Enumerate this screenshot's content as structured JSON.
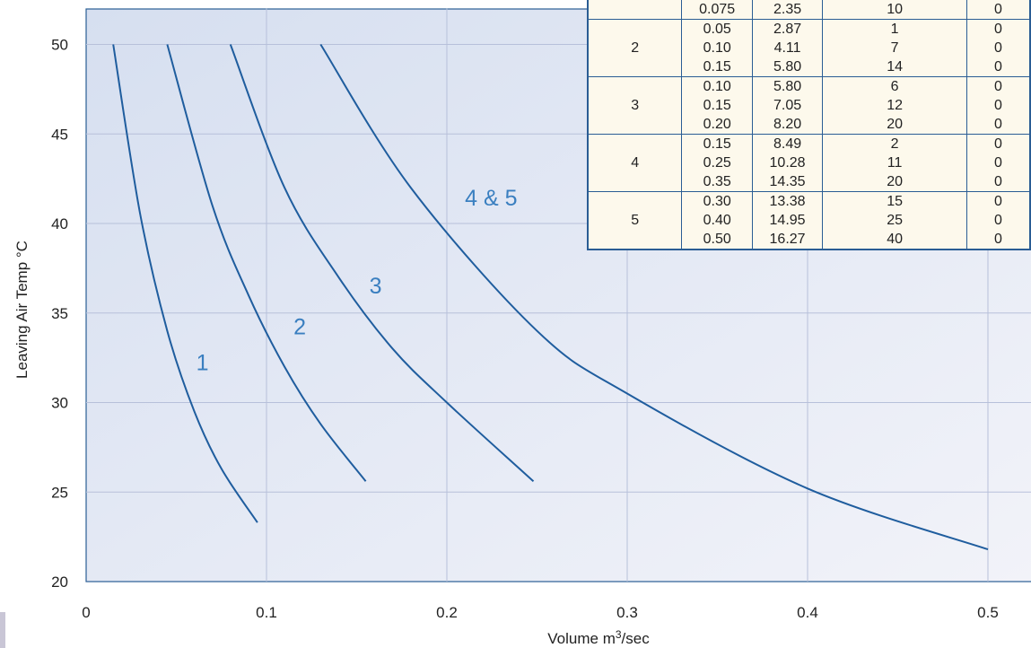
{
  "colors": {
    "curve": "#1f5d9e",
    "label": "#3a7fc0",
    "grid": "#b7c0da",
    "axis": "#2a5d94"
  },
  "chart_data": {
    "type": "line",
    "xlabel": "Volume m³/sec",
    "ylabel": "Leaving Air Temp °C",
    "xlim": [
      0,
      0.52
    ],
    "ylim": [
      20,
      52
    ],
    "x_ticks": [
      "0",
      "0.1",
      "0.2",
      "0.3",
      "0.4",
      "0.5"
    ],
    "y_ticks": [
      "20",
      "25",
      "30",
      "35",
      "40",
      "45",
      "50"
    ],
    "grid": true,
    "series": [
      {
        "name": "1",
        "x": [
          0.015,
          0.03,
          0.045,
          0.06,
          0.075,
          0.095
        ],
        "y": [
          50,
          40.5,
          34,
          29.5,
          26.3,
          23.3
        ]
      },
      {
        "name": "2",
        "x": [
          0.045,
          0.07,
          0.09,
          0.11,
          0.13,
          0.155
        ],
        "y": [
          50,
          41,
          36,
          32,
          28.8,
          25.6
        ]
      },
      {
        "name": "3",
        "x": [
          0.08,
          0.11,
          0.14,
          0.17,
          0.2,
          0.248
        ],
        "y": [
          50,
          42,
          37,
          33,
          30,
          25.6
        ]
      },
      {
        "name": "4 & 5",
        "x": [
          0.13,
          0.18,
          0.25,
          0.3,
          0.4,
          0.5
        ],
        "y": [
          50,
          42,
          34,
          30.5,
          25.2,
          21.8
        ]
      }
    ],
    "label_positions": [
      {
        "text": "1",
        "x": 0.061,
        "y": 31.8
      },
      {
        "text": "2",
        "x": 0.115,
        "y": 33.8
      },
      {
        "text": "3",
        "x": 0.157,
        "y": 36.1
      },
      {
        "text": "4 & 5",
        "x": 0.21,
        "y": 41.0
      }
    ]
  },
  "table": {
    "rows": [
      {
        "group": "",
        "volume": "0.075",
        "value": "2.35",
        "count": "10",
        "rest": "0"
      },
      {
        "group": "2",
        "volume": "0.05",
        "value": "2.87",
        "count": "1",
        "rest": "0"
      },
      {
        "group": "",
        "volume": "0.10",
        "value": "4.11",
        "count": "7",
        "rest": "0"
      },
      {
        "group": "",
        "volume": "0.15",
        "value": "5.80",
        "count": "14",
        "rest": "0"
      },
      {
        "group": "3",
        "volume": "0.10",
        "value": "5.80",
        "count": "6",
        "rest": "0"
      },
      {
        "group": "",
        "volume": "0.15",
        "value": "7.05",
        "count": "12",
        "rest": "0"
      },
      {
        "group": "",
        "volume": "0.20",
        "value": "8.20",
        "count": "20",
        "rest": "0"
      },
      {
        "group": "4",
        "volume": "0.15",
        "value": "8.49",
        "count": "2",
        "rest": "0"
      },
      {
        "group": "",
        "volume": "0.25",
        "value": "10.28",
        "count": "11",
        "rest": "0"
      },
      {
        "group": "",
        "volume": "0.35",
        "value": "14.35",
        "count": "20",
        "rest": "0"
      },
      {
        "group": "5",
        "volume": "0.30",
        "value": "13.38",
        "count": "15",
        "rest": "0"
      },
      {
        "group": "",
        "volume": "0.40",
        "value": "14.95",
        "count": "25",
        "rest": "0"
      },
      {
        "group": "",
        "volume": "0.50",
        "value": "16.27",
        "count": "40",
        "rest": "0"
      }
    ]
  }
}
